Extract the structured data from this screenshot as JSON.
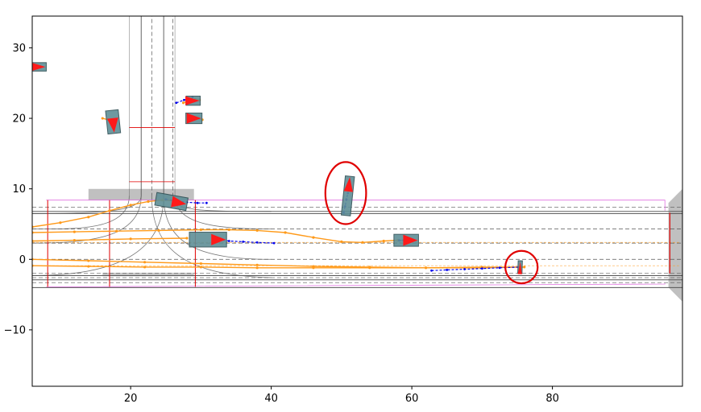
{
  "chart_data": {
    "type": "scatter",
    "title": "",
    "xlabel": "",
    "ylabel": "",
    "xlim": [
      6,
      98.5
    ],
    "ylim": [
      -18,
      34.5
    ],
    "grid": false,
    "legend": "none",
    "x_ticks": [
      20,
      40,
      60,
      80
    ],
    "y_ticks": [
      -10,
      0,
      10,
      20,
      30
    ],
    "colors": {
      "lane_boundary": "#555555",
      "lane_center": "#555555",
      "crosswalk": "#b0b0b0",
      "stop_line": "#e00000",
      "route_outline": "#e070e0",
      "vehicle_body": "#5f8f96",
      "heading_arrow": "#ff1a1a",
      "history_track": "#0000ee",
      "future_track": "#ff9a1a",
      "highlight_circle": "#e00000"
    },
    "vehicles": [
      {
        "x": 7.0,
        "y": 27.3,
        "length": 2.0,
        "width": 1.2,
        "heading_deg": 0
      },
      {
        "x": 17.5,
        "y": 19.5,
        "length": 3.3,
        "width": 1.8,
        "heading_deg": -84
      },
      {
        "x": 28.9,
        "y": 22.5,
        "length": 2.0,
        "width": 1.3,
        "heading_deg": 0
      },
      {
        "x": 29.0,
        "y": 20.0,
        "length": 2.3,
        "width": 1.5,
        "heading_deg": 0
      },
      {
        "x": 25.8,
        "y": 8.2,
        "length": 4.5,
        "width": 1.8,
        "heading_deg": -10
      },
      {
        "x": 31.0,
        "y": 2.8,
        "length": 5.3,
        "width": 2.1,
        "heading_deg": 0
      },
      {
        "x": 50.9,
        "y": 9.0,
        "length": 5.6,
        "width": 1.3,
        "heading_deg": 84
      },
      {
        "x": 59.2,
        "y": 2.7,
        "length": 3.5,
        "width": 1.7,
        "heading_deg": 0
      },
      {
        "x": 75.4,
        "y": -1.1,
        "length": 1.8,
        "width": 0.6,
        "heading_deg": 88
      }
    ],
    "history_tracks": [
      {
        "x": [
          26.5,
          27.6,
          28.8
        ],
        "y": [
          22.2,
          22.6,
          23.0
        ]
      },
      {
        "x": [
          28.2,
          28.9,
          29.6
        ],
        "y": [
          20.2,
          20.1,
          20.0
        ]
      },
      {
        "x": [
          25.0,
          26.5,
          28.0,
          29.5,
          30.8
        ],
        "y": [
          8.5,
          8.3,
          8.1,
          8.0,
          8.0
        ]
      },
      {
        "x": [
          32.0,
          34.0,
          36.0,
          38.0,
          40.4
        ],
        "y": [
          2.8,
          2.6,
          2.5,
          2.4,
          2.3
        ]
      },
      {
        "x": [
          50.3,
          50.5,
          50.7,
          50.9
        ],
        "y": [
          6.6,
          7.5,
          8.5,
          9.4
        ]
      },
      {
        "x": [
          58.2,
          58.8,
          59.4
        ],
        "y": [
          2.7,
          2.7,
          2.7
        ]
      },
      {
        "x": [
          62.8,
          65.0,
          67.5,
          70.0,
          72.5,
          75.4
        ],
        "y": [
          -1.6,
          -1.5,
          -1.4,
          -1.3,
          -1.2,
          -1.1
        ]
      }
    ],
    "future_tracks": [
      {
        "x": [
          6,
          10,
          14,
          17,
          20,
          22.5,
          24.5,
          26.0
        ],
        "y": [
          4.6,
          5.2,
          6.0,
          6.9,
          7.7,
          8.2,
          8.4,
          8.3
        ]
      },
      {
        "x": [
          6,
          12,
          18,
          24,
          30,
          34,
          38,
          42,
          46,
          50,
          53,
          56,
          58,
          59.2
        ],
        "y": [
          3.8,
          3.9,
          4.0,
          4.1,
          4.2,
          4.2,
          4.1,
          3.8,
          3.1,
          2.5,
          2.4,
          2.6,
          2.7,
          2.7
        ]
      },
      {
        "x": [
          6,
          12,
          20,
          28
        ],
        "y": [
          2.6,
          2.7,
          2.9,
          3.0
        ]
      },
      {
        "x": [
          6,
          14,
          22,
          30,
          38,
          46,
          54,
          62,
          70,
          75.4
        ],
        "y": [
          0.0,
          -0.2,
          -0.4,
          -0.6,
          -0.8,
          -1.0,
          -1.1,
          -1.2,
          -1.2,
          -1.1
        ]
      },
      {
        "x": [
          6,
          14,
          22,
          30,
          38,
          46,
          54,
          62,
          70,
          76
        ],
        "y": [
          -0.9,
          -1.0,
          -1.1,
          -1.1,
          -1.2,
          -1.2,
          -1.2,
          -1.2,
          -1.1,
          -1.1
        ]
      },
      {
        "x": [
          16.0,
          16.8,
          17.5
        ],
        "y": [
          20.0,
          19.8,
          19.6
        ]
      },
      {
        "x": [
          27.5,
          28.5,
          29.2,
          29.8
        ],
        "y": [
          22.2,
          22.5,
          22.7,
          22.6
        ]
      },
      {
        "x": [
          28.3,
          29.3,
          30.2
        ],
        "y": [
          20.3,
          20.0,
          19.8
        ]
      }
    ],
    "highlight_circles": [
      {
        "x": 50.6,
        "y": 9.4,
        "rx": 2.9,
        "ry": 4.4
      },
      {
        "x": 75.6,
        "y": -1.1,
        "rx": 2.3,
        "ry": 2.3
      }
    ]
  }
}
